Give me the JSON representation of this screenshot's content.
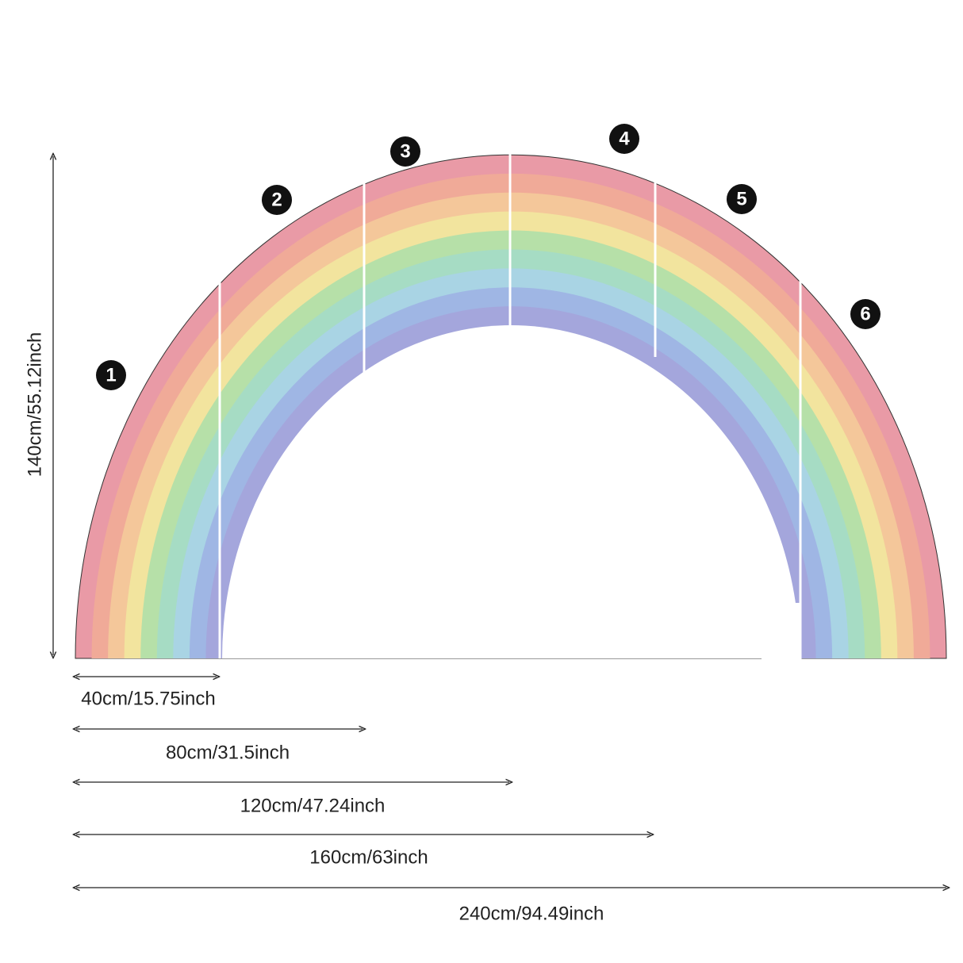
{
  "panels": [
    "1",
    "2",
    "3",
    "4",
    "5",
    "6"
  ],
  "height": "140cm/55.12inch",
  "widths": [
    "40cm/15.75inch",
    "80cm/31.5inch",
    "120cm/47.24inch",
    "160cm/63inch",
    "240cm/94.49inch"
  ]
}
